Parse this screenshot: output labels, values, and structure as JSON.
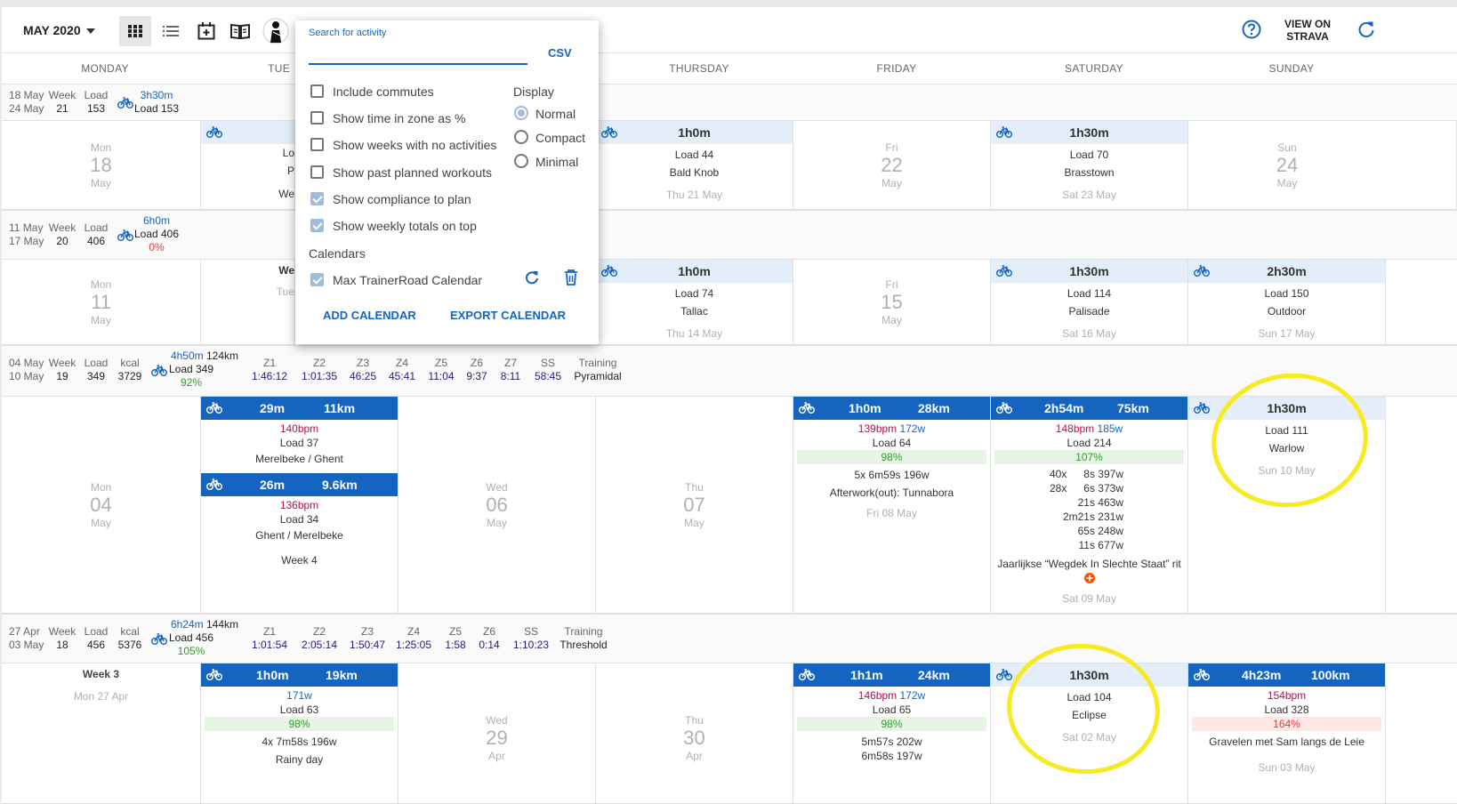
{
  "topbar": {
    "month": "MAY 2020",
    "view_on": "VIEW ON",
    "strava": "STRAVA"
  },
  "days": [
    "MONDAY",
    "TUE",
    "THURSDAY",
    "FRIDAY",
    "SATURDAY",
    "SUNDAY"
  ],
  "weeks": {
    "w21": {
      "d1": "18 May",
      "d2": "24 May",
      "week_lbl": "Week",
      "week": "21",
      "load_lbl": "Load",
      "load": "153",
      "dur": "3h30m",
      "load_line": "Load 153"
    },
    "w20": {
      "d1": "11 May",
      "d2": "17 May",
      "week_lbl": "Week",
      "week": "20",
      "load_lbl": "Load",
      "load": "406",
      "dur": "6h0m",
      "load_line": "Load 406",
      "pct": "0%"
    },
    "w19": {
      "d1": "04 May",
      "d2": "10 May",
      "week_lbl": "Week",
      "week": "19",
      "load_lbl": "Load",
      "load": "349",
      "kcal_lbl": "kcal",
      "kcal": "3729",
      "dur": "4h50m",
      "dist": "124km",
      "load_line": "Load 349",
      "pct": "92%",
      "zones": [
        [
          "Z1",
          "1:46:12"
        ],
        [
          "Z2",
          "1:01:35"
        ],
        [
          "Z3",
          "46:25"
        ],
        [
          "Z4",
          "45:41"
        ],
        [
          "Z5",
          "11:04"
        ],
        [
          "Z6",
          "9:37"
        ],
        [
          "Z7",
          "8:11"
        ],
        [
          "SS",
          "58:45"
        ]
      ],
      "training_lbl": "Training",
      "training": "Pyramidal"
    },
    "w18": {
      "d1": "27 Apr",
      "d2": "03 May",
      "week_lbl": "Week",
      "week": "18",
      "load_lbl": "Load",
      "load": "456",
      "kcal_lbl": "kcal",
      "kcal": "5376",
      "dur": "6h24m",
      "dist": "144km",
      "load_line": "Load 456",
      "pct": "105%",
      "zones": [
        [
          "Z1",
          "1:01:54"
        ],
        [
          "Z2",
          "2:05:14"
        ],
        [
          "Z3",
          "1:50:47"
        ],
        [
          "Z4",
          "1:25:05"
        ],
        [
          "Z5",
          "1:58"
        ],
        [
          "Z6",
          "0:14"
        ],
        [
          "SS",
          "1:10:23"
        ]
      ],
      "training_lbl": "Training",
      "training": "Threshold"
    }
  },
  "cells": {
    "mon18": {
      "w": "Mon",
      "n": "18",
      "m": "May"
    },
    "tue19": {
      "l1": "Lo",
      "l2": "P",
      "l3": "We"
    },
    "thu21": {
      "dur": "1h0m",
      "load": "Load 44",
      "name": "Bald Knob",
      "date": "Thu 21 May"
    },
    "fri22": {
      "w": "Fri",
      "n": "22",
      "m": "May"
    },
    "sat23": {
      "dur": "1h30m",
      "load": "Load 70",
      "name": "Brasstown",
      "date": "Sat 23 May"
    },
    "sun24": {
      "w": "Sun",
      "n": "24",
      "m": "May"
    },
    "mon11": {
      "w": "Mon",
      "n": "11",
      "m": "May"
    },
    "tue12": {
      "l1": "We",
      "l2": "Tue"
    },
    "thu14": {
      "dur": "1h0m",
      "load": "Load 74",
      "name": "Tallac",
      "date": "Thu 14 May"
    },
    "fri15": {
      "w": "Fri",
      "n": "15",
      "m": "May"
    },
    "sat16": {
      "dur": "1h30m",
      "load": "Load 114",
      "name": "Palisade",
      "date": "Sat 16 May"
    },
    "sun17": {
      "dur": "2h30m",
      "load": "Load 150",
      "name": "Outdoor",
      "date": "Sun 17 May"
    },
    "mon04": {
      "w": "Mon",
      "n": "04",
      "m": "May"
    },
    "tue05": {
      "a_dur": "29m",
      "a_dist": "11km",
      "a_bpm": "140bpm",
      "a_load": "Load 37",
      "a_name": "Merelbeke / Ghent",
      "b_dur": "26m",
      "b_dist": "9.6km",
      "b_bpm": "136bpm",
      "b_load": "Load 34",
      "b_name": "Ghent / Merelbeke",
      "week": "Week 4"
    },
    "wed06": {
      "w": "Wed",
      "n": "06",
      "m": "May"
    },
    "thu07": {
      "w": "Thu",
      "n": "07",
      "m": "May"
    },
    "fri08": {
      "dur": "1h0m",
      "dist": "28km",
      "bpm": "139bpm",
      "watts": "172w",
      "load": "Load 64",
      "pct": "98%",
      "int": "5x 6m59s 196w",
      "name": "Afterwork(out): Tunnabora",
      "date": "Fri 08 May"
    },
    "sat09": {
      "dur": "2h54m",
      "dist": "75km",
      "bpm": "148bpm",
      "watts": "185w",
      "load": "Load 214",
      "pct": "107%",
      "i1a": "40x",
      "i1b": "8s 397w",
      "i2a": "28x",
      "i2b": "6s 373w",
      "i3": "21s 463w",
      "i4": "2m21s 231w",
      "i5": "65s 248w",
      "i6": "11s 677w",
      "name": "Jaarlijkse “Wegdek In Slechte Staat” rit",
      "date": "Sat 09 May"
    },
    "sun10": {
      "dur": "1h30m",
      "load": "Load 111",
      "name": "Warlow",
      "date": "Sun 10 May"
    },
    "mon27": {
      "week": "Week 3",
      "date": "Mon 27 Apr"
    },
    "tue28": {
      "dur": "1h0m",
      "dist": "19km",
      "watts": "171w",
      "load": "Load 63",
      "pct": "98%",
      "int": "4x 7m58s 196w",
      "name": "Rainy day"
    },
    "wed29": {
      "w": "Wed",
      "n": "29",
      "m": "Apr"
    },
    "thu30": {
      "w": "Thu",
      "n": "30",
      "m": "Apr"
    },
    "fri01": {
      "dur": "1h1m",
      "dist": "24km",
      "bpm": "146bpm",
      "watts": "172w",
      "load": "Load 65",
      "pct": "98%",
      "i1": "5m57s 202w",
      "i2": "6m58s 197w"
    },
    "sat02": {
      "dur": "1h30m",
      "load": "Load 104",
      "name": "Eclipse",
      "date": "Sat 02 May"
    },
    "sun03": {
      "dur": "4h23m",
      "dist": "100km",
      "bpm": "154bpm",
      "load": "Load 328",
      "pct": "164%",
      "name": "Gravelen met Sam langs de Leie",
      "date": "Sun 03 May"
    }
  },
  "popup": {
    "search_placeholder": "Search for activity",
    "csv": "CSV",
    "options": [
      "Include commutes",
      "Show time in zone as %",
      "Show weeks with no activities",
      "Show past planned workouts",
      "Show compliance to plan",
      "Show weekly totals on top"
    ],
    "display_lbl": "Display",
    "display_opts": [
      "Normal",
      "Compact",
      "Minimal"
    ],
    "calendars_lbl": "Calendars",
    "calendar": "Max TrainerRoad Calendar",
    "add": "ADD CALENDAR",
    "export": "EXPORT CALENDAR"
  },
  "colors": {
    "accent": "#1565c0",
    "highlight": "#f7ea20",
    "ok": "#2e9c2e",
    "warn": "#e53935"
  }
}
